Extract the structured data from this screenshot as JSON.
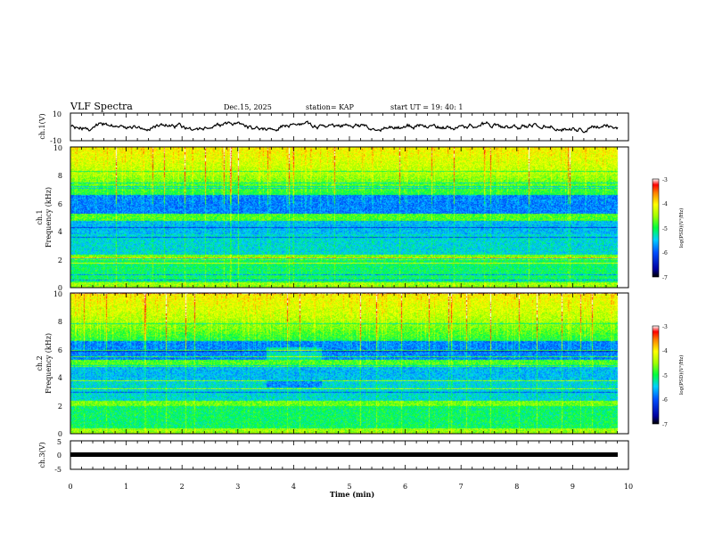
{
  "header": {
    "title": "VLF Spectra",
    "date": "Dec.15, 2025",
    "station": "station= KAP",
    "start": "start  UT  =   19: 40: 1"
  },
  "chart_data": {
    "type": "heatmap",
    "x_label": "Time (min)",
    "x_range": [
      0,
      10
    ],
    "x_ticks": [
      "0",
      "1",
      "2",
      "3",
      "4",
      "5",
      "6",
      "7",
      "8",
      "9",
      "10"
    ],
    "panels": [
      {
        "id": "ch1-waveform",
        "type": "line",
        "ylabel": "ch.1(V)",
        "y_range": [
          -10,
          10
        ],
        "y_ticks": [
          "10",
          "-10"
        ]
      },
      {
        "id": "ch1-spectrogram",
        "type": "heatmap",
        "ylabel_top": "ch.1",
        "ylabel": "Frequency (kHz)",
        "y_range": [
          0,
          10
        ],
        "y_ticks": [
          "0",
          "2",
          "4",
          "6",
          "8",
          "10"
        ],
        "colorbar": {
          "label": "log(PSD)(V²/Hz)",
          "range": [
            -7,
            -3
          ],
          "ticks": [
            "-3",
            "-4",
            "-5",
            "-6",
            "-7"
          ]
        }
      },
      {
        "id": "ch2-spectrogram",
        "type": "heatmap",
        "ylabel_top": "ch.2",
        "ylabel": "Frequency (kHz)",
        "y_range": [
          0,
          10
        ],
        "y_ticks": [
          "0",
          "2",
          "4",
          "6",
          "8",
          "10"
        ],
        "colorbar": {
          "label": "log(PSD)(V²/Hz)",
          "range": [
            -7,
            -3
          ],
          "ticks": [
            "-3",
            "-4",
            "-5",
            "-6",
            "-7"
          ]
        }
      },
      {
        "id": "ch3-waveform",
        "type": "line",
        "ylabel": "ch.3(V)",
        "y_range": [
          -5,
          5
        ],
        "y_ticks": [
          "5",
          "0",
          "-5"
        ]
      }
    ]
  }
}
